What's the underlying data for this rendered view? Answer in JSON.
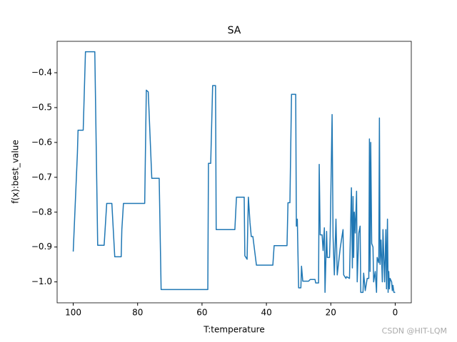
{
  "chart_data": {
    "type": "line",
    "title": "SA",
    "xlabel": "T:temperature",
    "ylabel": "f(x):best_value",
    "annotation": "CSDN @HIT-LQM",
    "x": [
      100,
      98.7,
      98.5,
      96.9,
      96.2,
      93.3,
      92.4,
      90.4,
      89.6,
      88.0,
      87.1,
      85.1,
      84.9,
      84.4,
      77.8,
      77.3,
      76.7,
      75.6,
      73.3,
      72.7,
      58.2,
      58.0,
      57.3,
      56.7,
      55.8,
      55.6,
      49.8,
      49.3,
      46.9,
      46.7,
      46.0,
      45.6,
      45.1,
      44.7,
      44.2,
      43.1,
      38.0,
      37.6,
      33.6,
      33.3,
      32.7,
      32.2,
      30.9,
      30.7,
      30.4,
      30.0,
      29.3,
      29.1,
      28.7,
      26.9,
      26.4,
      24.9,
      24.7,
      23.8,
      23.6,
      23.3,
      22.7,
      22.4,
      22.0,
      21.8,
      21.3,
      21.1,
      20.4,
      20.2,
      19.6,
      19.3,
      18.9,
      18.4,
      18.0,
      17.1,
      16.7,
      16.2,
      16.0,
      15.3,
      15.1,
      14.2,
      13.6,
      13.3,
      13.1,
      12.9,
      12.7,
      12.4,
      12.0,
      11.8,
      11.3,
      10.9,
      10.7,
      10.0,
      9.8,
      9.3,
      8.7,
      8.2,
      8.0,
      7.8,
      7.6,
      7.3,
      6.9,
      6.7,
      6.2,
      5.8,
      5.6,
      5.1,
      4.9,
      4.7,
      4.4,
      4.0,
      3.8,
      3.3,
      2.9,
      2.7,
      2.4,
      2.2,
      2.0,
      1.8,
      1.6,
      1.1,
      0.9,
      0.7,
      0.4,
      0.0
    ],
    "series": [
      {
        "name": "best_value",
        "color": "#1f77b4",
        "values": [
          -0.913,
          -0.63,
          -0.565,
          -0.565,
          -0.34,
          -0.34,
          -0.895,
          -0.895,
          -0.775,
          -0.775,
          -0.928,
          -0.928,
          -0.85,
          -0.775,
          -0.775,
          -0.45,
          -0.455,
          -0.703,
          -0.703,
          -1.022,
          -1.022,
          -0.66,
          -0.66,
          -0.437,
          -0.437,
          -0.85,
          -0.85,
          -0.757,
          -0.757,
          -0.925,
          -0.935,
          -0.757,
          -0.83,
          -0.87,
          -0.87,
          -0.952,
          -0.952,
          -0.896,
          -0.896,
          -0.773,
          -0.773,
          -0.462,
          -0.462,
          -0.84,
          -0.82,
          -1.017,
          -1.017,
          -0.955,
          -0.998,
          -0.998,
          -0.993,
          -0.993,
          -1.003,
          -1.003,
          -0.663,
          -0.865,
          -0.865,
          -0.91,
          -0.845,
          -1.03,
          -0.855,
          -0.93,
          -0.93,
          -0.87,
          -0.52,
          -0.87,
          -0.98,
          -0.82,
          -0.98,
          -0.905,
          -0.88,
          -0.85,
          -0.98,
          -0.99,
          -0.985,
          -0.99,
          -0.73,
          -0.96,
          -0.755,
          -0.93,
          -0.8,
          -0.86,
          -0.74,
          -1.0,
          -0.86,
          -0.84,
          -1.03,
          -1.03,
          -0.975,
          -1.025,
          -0.99,
          -0.99,
          -0.59,
          -0.97,
          -0.6,
          -0.89,
          -0.9,
          -1.0,
          -0.97,
          -1.03,
          -0.93,
          -0.945,
          -0.53,
          -0.95,
          -0.88,
          -1.0,
          -0.85,
          -1.0,
          -0.85,
          -1.02,
          -0.82,
          -1.03,
          -0.97,
          -1.02,
          -0.99,
          -1.0,
          -1.025,
          -1.01,
          -1.03,
          -1.03
        ]
      }
    ],
    "xlim": [
      105,
      -5
    ],
    "xticks": [
      100,
      80,
      60,
      40,
      20,
      0
    ],
    "ylim": [
      -1.06,
      -0.31
    ],
    "yticks": [
      {
        "value": -1.0,
        "label": "−1.0"
      },
      {
        "value": -0.9,
        "label": "−0.9"
      },
      {
        "value": -0.8,
        "label": "−0.8"
      },
      {
        "value": -0.7,
        "label": "−0.7"
      },
      {
        "value": -0.6,
        "label": "−0.6"
      },
      {
        "value": -0.5,
        "label": "−0.5"
      },
      {
        "value": -0.4,
        "label": "−0.4"
      }
    ],
    "grid": false
  }
}
